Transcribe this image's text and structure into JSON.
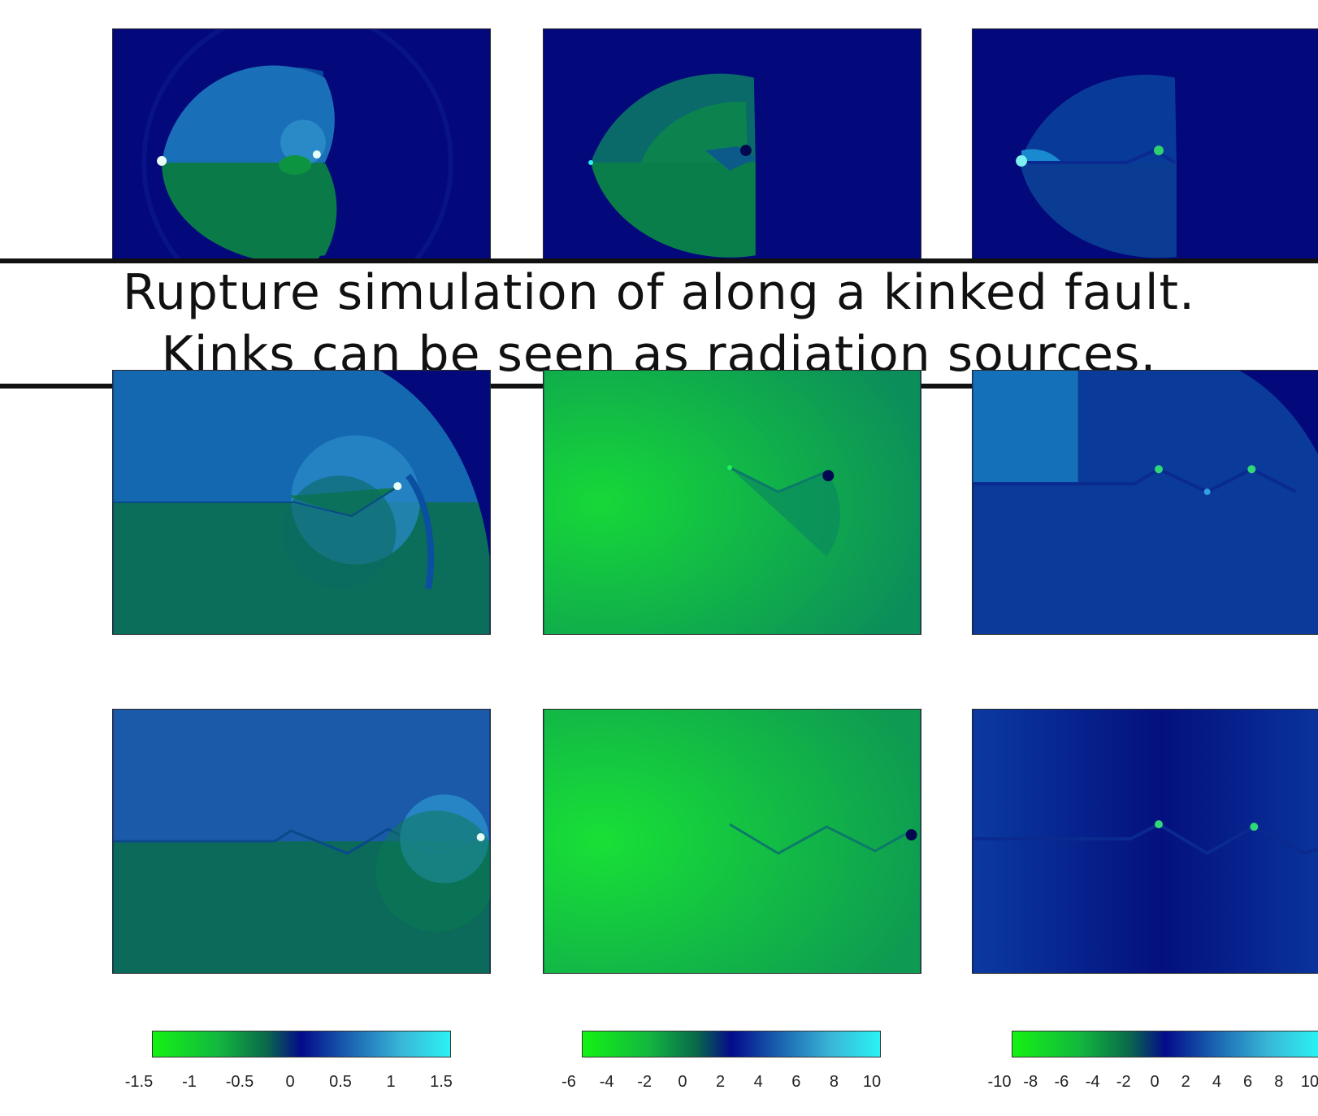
{
  "caption": {
    "line1": "Rupture simulation of along a kinked fault.",
    "line2": "Kinks can be seen as radiation sources."
  },
  "colorbars": [
    {
      "ticks": [
        "-1.5",
        "-1",
        "-0.5",
        "0",
        "0.5",
        "1",
        "1.5"
      ]
    },
    {
      "ticks": [
        "-6",
        "-4",
        "-2",
        "0",
        "2",
        "4",
        "6",
        "8",
        "10"
      ]
    },
    {
      "ticks": [
        "-10",
        "-8",
        "-6",
        "-4",
        "-2",
        "0",
        "2",
        "4",
        "6",
        "8",
        "10"
      ]
    }
  ],
  "colors": {
    "deep_blue": "#03087a",
    "green": "#14f214",
    "cyan": "#2af2f2",
    "mid_green": "#0f9a46"
  }
}
